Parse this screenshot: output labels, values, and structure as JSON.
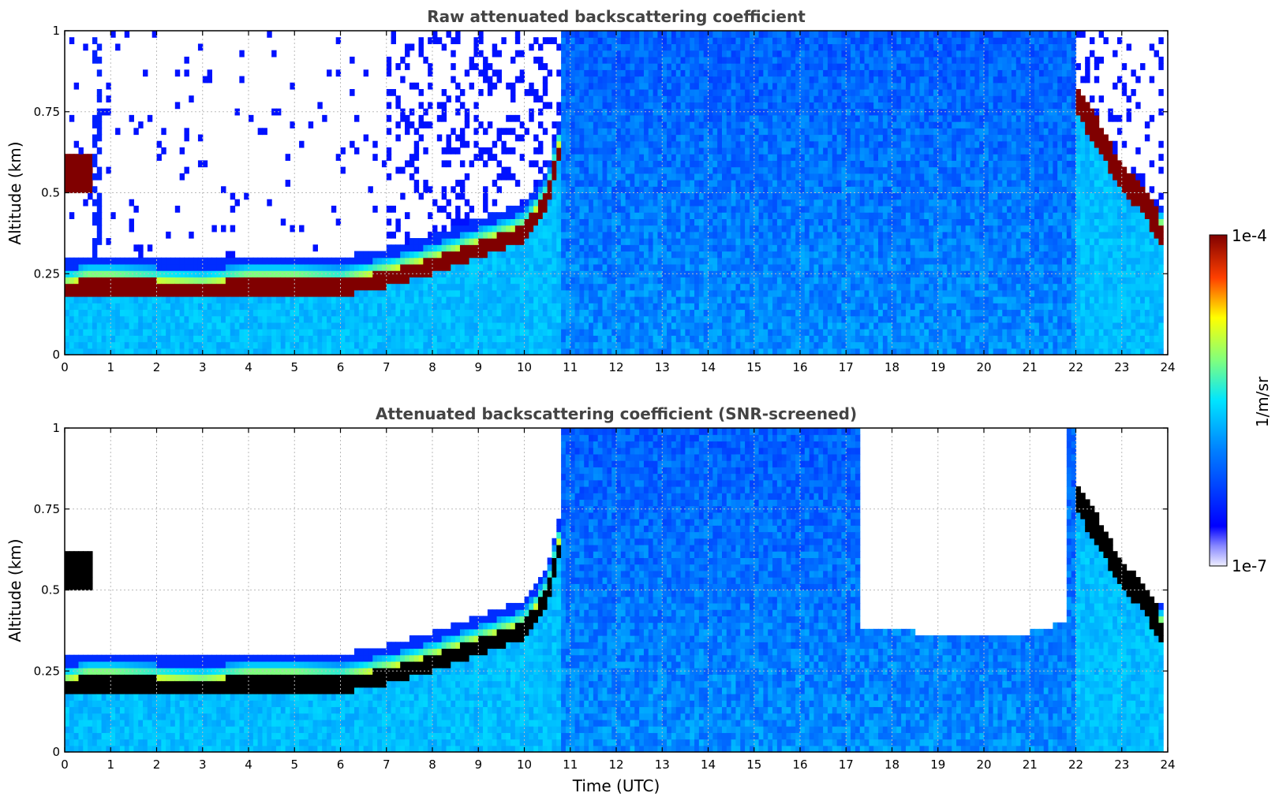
{
  "chart_data": [
    {
      "type": "heatmap",
      "title": "Raw attenuated backscattering coefficient",
      "ylabel": "Altitude (km)",
      "xlabel": "",
      "xlim": [
        0,
        24
      ],
      "ylim": [
        0,
        1
      ],
      "xticks": [
        "0",
        "1",
        "2",
        "3",
        "4",
        "5",
        "6",
        "7",
        "8",
        "9",
        "10",
        "11",
        "12",
        "13",
        "14",
        "15",
        "16",
        "17",
        "18",
        "19",
        "20",
        "21",
        "22",
        "23",
        "24"
      ],
      "yticks": [
        "0",
        "0.25",
        "0.5",
        "0.75",
        "1"
      ],
      "grid": true,
      "layer_top_km": [
        {
          "t": 0.0,
          "z": 0.22
        },
        {
          "t": 0.5,
          "z": 0.24
        },
        {
          "t": 1.0,
          "z": 0.24
        },
        {
          "t": 2.0,
          "z": 0.23
        },
        {
          "t": 3.0,
          "z": 0.22
        },
        {
          "t": 4.0,
          "z": 0.24
        },
        {
          "t": 5.0,
          "z": 0.24
        },
        {
          "t": 6.0,
          "z": 0.23
        },
        {
          "t": 7.0,
          "z": 0.26
        },
        {
          "t": 8.0,
          "z": 0.3
        },
        {
          "t": 9.0,
          "z": 0.35
        },
        {
          "t": 10.0,
          "z": 0.4
        },
        {
          "t": 10.5,
          "z": 0.5
        },
        {
          "t": 11.0,
          "z": 0.8
        },
        {
          "t": 22.0,
          "z": 0.8
        },
        {
          "t": 22.5,
          "z": 0.68
        },
        {
          "t": 23.0,
          "z": 0.55
        },
        {
          "t": 23.5,
          "z": 0.48
        },
        {
          "t": 23.8,
          "z": 0.4
        }
      ],
      "fog_layer_km": [
        {
          "t": 0.0,
          "z": 0.6
        },
        {
          "t": 0.6,
          "z": 0.58
        }
      ],
      "clear_sky_fraction_visible": 0.0
    },
    {
      "type": "heatmap",
      "title": "Attenuated backscattering coefficient (SNR-screened)",
      "ylabel": "Altitude (km)",
      "xlabel": "Time (UTC)",
      "xlim": [
        0,
        24
      ],
      "ylim": [
        0,
        1
      ],
      "xticks": [
        "0",
        "1",
        "2",
        "3",
        "4",
        "5",
        "6",
        "7",
        "8",
        "9",
        "10",
        "11",
        "12",
        "13",
        "14",
        "15",
        "16",
        "17",
        "18",
        "19",
        "20",
        "21",
        "22",
        "23",
        "24"
      ],
      "yticks": [
        "0",
        "0.25",
        "0.5",
        "0.75",
        "1"
      ],
      "grid": true,
      "snr_cutoff_km": [
        {
          "t": 17.3,
          "z": 0.39
        },
        {
          "t": 18.5,
          "z": 0.37
        },
        {
          "t": 19.5,
          "z": 0.36
        },
        {
          "t": 20.5,
          "z": 0.35
        },
        {
          "t": 21.0,
          "z": 0.37
        },
        {
          "t": 21.8,
          "z": 0.4
        }
      ]
    }
  ],
  "colorbar": {
    "label": "1/m/sr",
    "max_label": "1e-4",
    "min_label": "1e-7",
    "scale": "log",
    "range": [
      1e-07,
      0.0001
    ],
    "colormap": "jet"
  },
  "colors": {
    "title": "#444444",
    "saturated_raw": "#800000",
    "saturated_screened": "#000000",
    "background": "#ffffff"
  }
}
